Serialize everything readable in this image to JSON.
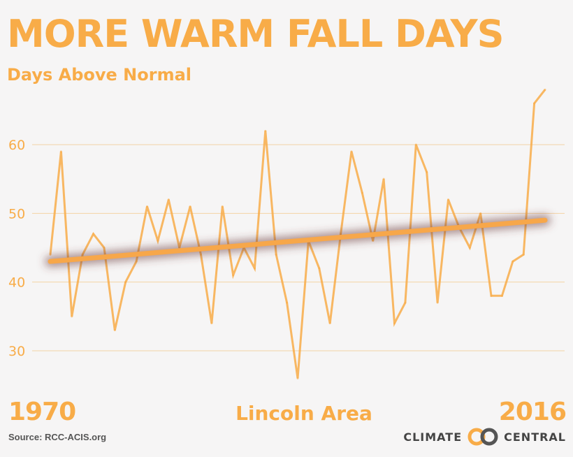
{
  "header": {
    "title": "MORE WARM FALL DAYS",
    "subtitle": "Days Above Normal"
  },
  "footer": {
    "start_year": "1970",
    "end_year": "2016",
    "area": "Lincoln Area",
    "source": "Source: RCC-ACIS.org",
    "brand_left": "CLIMATE",
    "brand_right": "CENTRAL",
    "brand_logo_icon": "climate-central-logo-icon"
  },
  "colors": {
    "accent": "#f8ac48",
    "trend": "#f7a74a",
    "gridline": "#f3d3a5",
    "background": "#f6f5f5"
  },
  "chart_data": {
    "type": "line",
    "title": "MORE WARM FALL DAYS",
    "subtitle": "Days Above Normal",
    "xlabel": "",
    "ylabel": "",
    "x": [
      1970,
      1971,
      1972,
      1973,
      1974,
      1975,
      1976,
      1977,
      1978,
      1979,
      1980,
      1981,
      1982,
      1983,
      1984,
      1985,
      1986,
      1987,
      1988,
      1989,
      1990,
      1991,
      1992,
      1993,
      1994,
      1995,
      1996,
      1997,
      1998,
      1999,
      2000,
      2001,
      2002,
      2003,
      2004,
      2005,
      2006,
      2007,
      2008,
      2009,
      2010,
      2011,
      2012,
      2013,
      2014,
      2015,
      2016
    ],
    "series": [
      {
        "values": [
          44,
          59,
          35,
          44,
          47,
          45,
          33,
          40,
          43,
          51,
          46,
          52,
          45,
          51,
          44,
          34,
          51,
          41,
          45,
          42,
          62,
          44,
          37,
          26,
          46,
          42,
          34,
          47,
          59,
          53,
          46,
          55,
          34,
          37,
          60,
          56,
          37,
          52,
          48,
          45,
          50,
          38,
          38,
          43,
          44,
          66,
          68
        ]
      }
    ],
    "trend": {
      "x": [
        1970,
        2016
      ],
      "y": [
        43,
        49
      ]
    },
    "yticks": [
      30,
      40,
      50,
      60
    ],
    "ylim": [
      24,
      70
    ],
    "xlim": [
      1970,
      2016
    ],
    "grid": true,
    "legend": "none"
  }
}
